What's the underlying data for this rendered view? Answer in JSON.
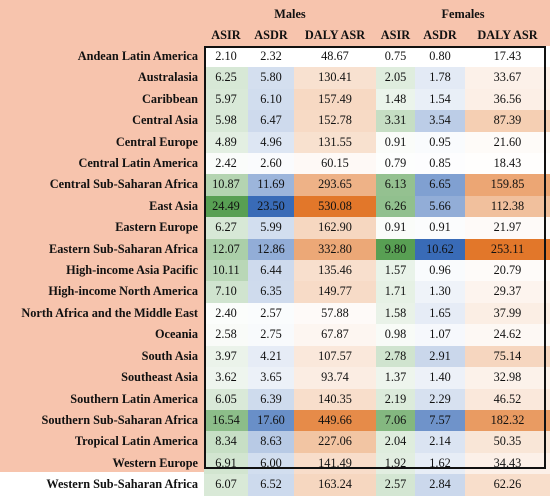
{
  "header": {
    "groups": [
      "Males",
      "Females"
    ],
    "columns": [
      "ASIR",
      "ASDR",
      "DALY ASR",
      "ASIR",
      "ASDR",
      "DALY ASR"
    ]
  },
  "rows": [
    {
      "label": "Andean Latin America",
      "values": [
        "2.10",
        "2.32",
        "48.67",
        "0.75",
        "0.80",
        "17.43"
      ]
    },
    {
      "label": "Australasia",
      "values": [
        "6.25",
        "5.80",
        "130.41",
        "2.05",
        "1.78",
        "33.67"
      ]
    },
    {
      "label": "Caribbean",
      "values": [
        "5.97",
        "6.10",
        "157.49",
        "1.48",
        "1.54",
        "36.56"
      ]
    },
    {
      "label": "Central Asia",
      "values": [
        "5.98",
        "6.47",
        "152.78",
        "3.31",
        "3.54",
        "87.39"
      ]
    },
    {
      "label": "Central Europe",
      "values": [
        "4.89",
        "4.96",
        "131.55",
        "0.91",
        "0.95",
        "21.60"
      ]
    },
    {
      "label": "Central Latin America",
      "values": [
        "2.42",
        "2.60",
        "60.15",
        "0.79",
        "0.85",
        "18.43"
      ]
    },
    {
      "label": "Central Sub-Saharan Africa",
      "values": [
        "10.87",
        "11.69",
        "293.65",
        "6.13",
        "6.65",
        "159.85"
      ]
    },
    {
      "label": "East Asia",
      "values": [
        "24.49",
        "23.50",
        "530.08",
        "6.26",
        "5.66",
        "112.38"
      ]
    },
    {
      "label": "Eastern Europe",
      "values": [
        "6.27",
        "5.99",
        "162.90",
        "0.91",
        "0.91",
        "21.97"
      ]
    },
    {
      "label": "Eastern Sub-Saharan Africa",
      "values": [
        "12.07",
        "12.86",
        "332.80",
        "9.80",
        "10.62",
        "253.11"
      ]
    },
    {
      "label": "High-income Asia Pacific",
      "values": [
        "10.11",
        "6.44",
        "135.46",
        "1.57",
        "0.96",
        "20.79"
      ]
    },
    {
      "label": "High-income North America",
      "values": [
        "7.10",
        "6.35",
        "149.77",
        "1.71",
        "1.30",
        "29.37"
      ]
    },
    {
      "label": "North Africa and the Middle East",
      "values": [
        "2.40",
        "2.57",
        "57.88",
        "1.58",
        "1.65",
        "37.99"
      ]
    },
    {
      "label": "Oceania",
      "values": [
        "2.58",
        "2.75",
        "67.87",
        "0.98",
        "1.07",
        "24.62"
      ]
    },
    {
      "label": "South Asia",
      "values": [
        "3.97",
        "4.21",
        "107.57",
        "2.78",
        "2.91",
        "75.14"
      ]
    },
    {
      "label": "Southeast Asia",
      "values": [
        "3.62",
        "3.65",
        "93.74",
        "1.37",
        "1.40",
        "32.98"
      ]
    },
    {
      "label": "Southern Latin America",
      "values": [
        "6.05",
        "6.39",
        "140.35",
        "2.19",
        "2.29",
        "46.52"
      ]
    },
    {
      "label": "Southern Sub-Saharan Africa",
      "values": [
        "16.54",
        "17.60",
        "449.66",
        "7.06",
        "7.57",
        "182.32"
      ]
    },
    {
      "label": "Tropical Latin America",
      "values": [
        "8.34",
        "8.63",
        "227.06",
        "2.04",
        "2.14",
        "50.35"
      ]
    },
    {
      "label": "Western Europe",
      "values": [
        "6.91",
        "6.00",
        "141.49",
        "1.92",
        "1.62",
        "34.43"
      ]
    },
    {
      "label": "Western Sub-Saharan Africa",
      "values": [
        "6.07",
        "6.52",
        "163.24",
        "2.57",
        "2.84",
        "62.26"
      ]
    }
  ],
  "colors": {
    "label_background": "#f7c4ad",
    "asir_scale": [
      "#ffffff",
      "#4f9a4a"
    ],
    "asdr_scale": [
      "#ffffff",
      "#2f63b3"
    ],
    "daly_scale": [
      "#ffffff",
      "#e0701f"
    ],
    "frame": "#111111"
  }
}
